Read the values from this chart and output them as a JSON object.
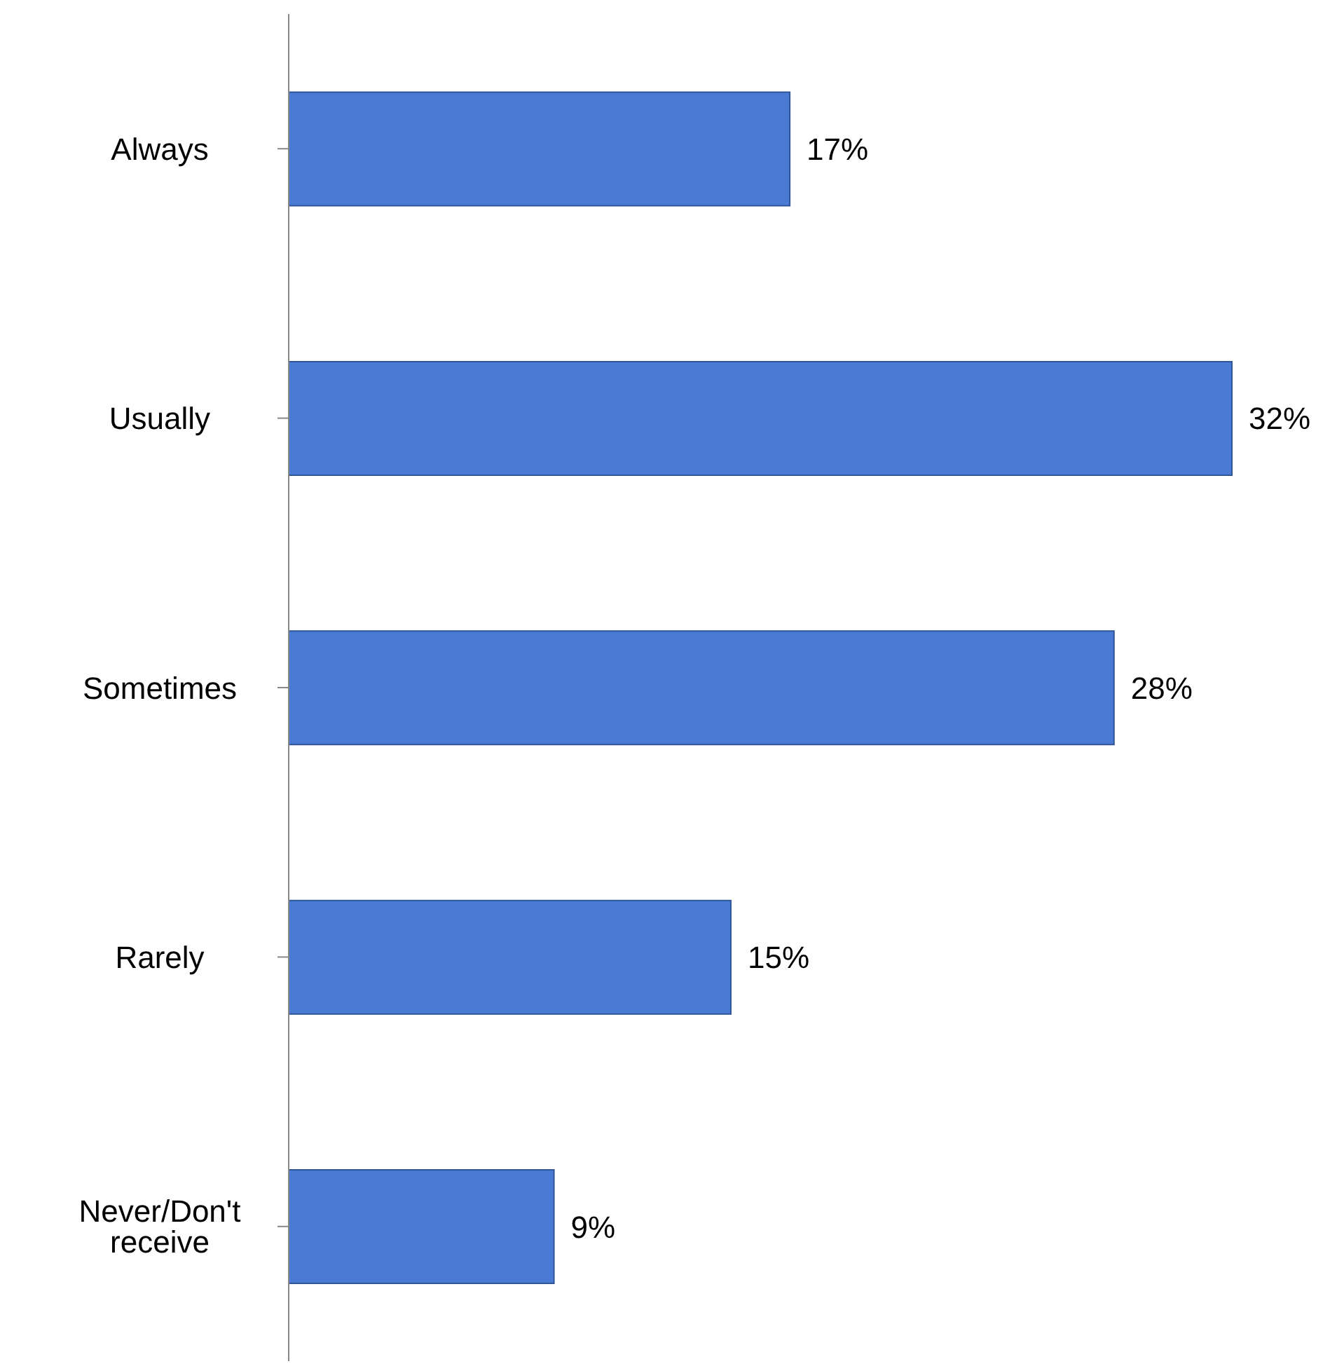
{
  "chart_data": {
    "type": "bar",
    "orientation": "horizontal",
    "categories": [
      "Always",
      "Usually",
      "Sometimes",
      "Rarely",
      "Never/Don't receive"
    ],
    "values": [
      17,
      32,
      28,
      15,
      9
    ],
    "value_labels": [
      "17%",
      "32%",
      "28%",
      "15%",
      "9%"
    ],
    "color": "#4a7bd4",
    "grid": false,
    "legend": false
  }
}
